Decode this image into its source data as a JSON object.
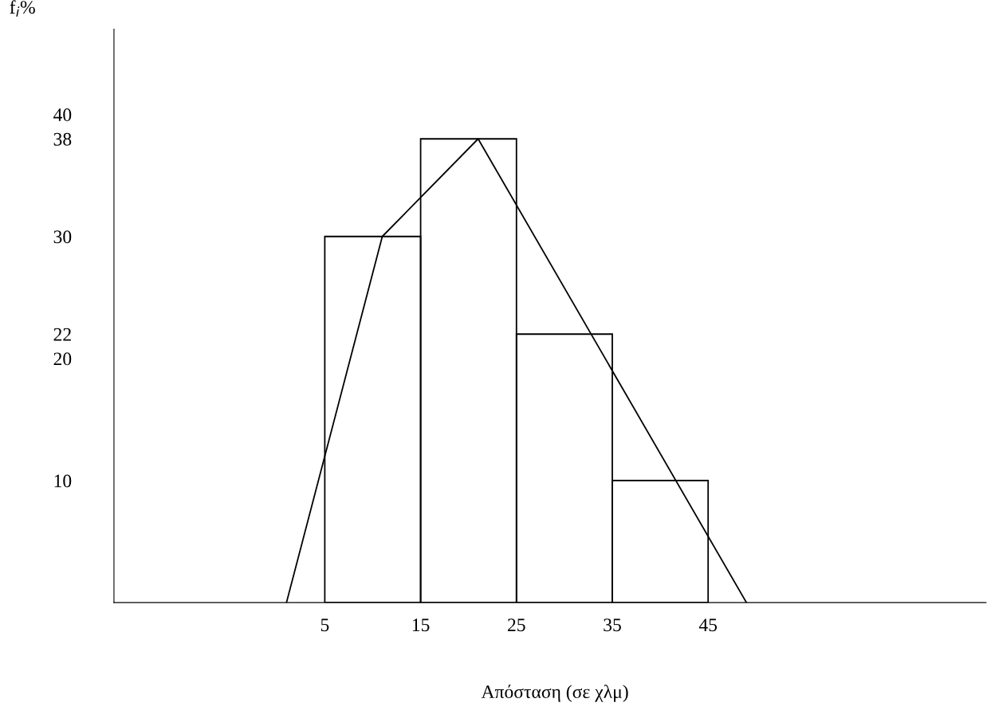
{
  "chart_data": {
    "type": "histogram",
    "xlabel": "Απόσταση (σε χλμ)",
    "ylabel": "f$_{i}$%",
    "bins": [
      5,
      15,
      25,
      35,
      45
    ],
    "values": [
      30,
      38,
      22,
      10
    ],
    "color": "#000000",
    "series": [
      {
        "type": "line",
        "x": [
          1,
          11,
          21,
          49
        ],
        "values": [
          0,
          30,
          38,
          0
        ],
        "color": "#000000"
      }
    ],
    "xlim": [
      -17,
      74
    ],
    "ylim": [
      0,
      47
    ],
    "xticks": [
      5,
      15,
      25,
      35,
      45
    ],
    "yticks": [
      10,
      20,
      22,
      30,
      38,
      40
    ],
    "grid": false,
    "legend": false
  }
}
